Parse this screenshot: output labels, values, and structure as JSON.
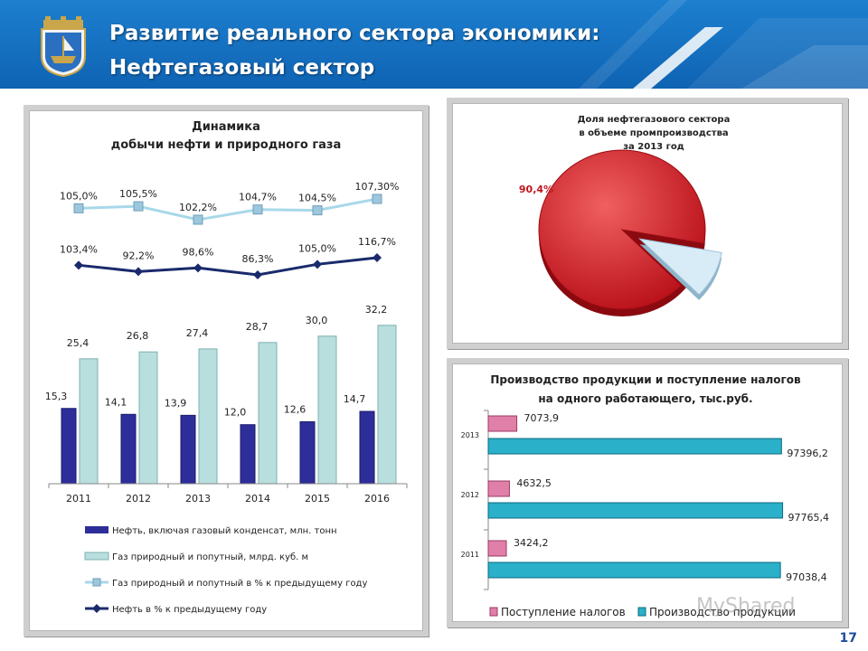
{
  "header": {
    "title_line1": "Развитие реального сектора экономики:",
    "title_line2": "Нефтегазовый сектор",
    "colors": {
      "bg": "#1670c2",
      "text": "#ffffff"
    }
  },
  "page_number": "17",
  "watermark": "MyShared",
  "chart_data": [
    {
      "type": "bar",
      "title": "Динамика\nдобычи нефти и природного газа",
      "categories": [
        "2011",
        "2012",
        "2013",
        "2014",
        "2015",
        "2016"
      ],
      "series": [
        {
          "name": "Нефть, включая газовый конденсат, млн. тонн",
          "type": "bar",
          "color": "#2e2e9a",
          "values": [
            15.3,
            14.1,
            13.9,
            12.0,
            12.6,
            14.7
          ],
          "labels": [
            "15,3",
            "14,1",
            "13,9",
            "12,0",
            "12,6",
            "14,7"
          ]
        },
        {
          "name": "Газ природный и попутный, млрд. куб. м",
          "type": "bar",
          "color": "#b8dede",
          "values": [
            25.4,
            26.8,
            27.4,
            28.7,
            30.0,
            32.2
          ],
          "labels": [
            "25,4",
            "26,8",
            "27,4",
            "28,7",
            "30,0",
            "32,2"
          ]
        },
        {
          "name": "Газ природный и попутный в % к предыдущему году",
          "type": "line",
          "color": "#a8d8ea",
          "values": [
            105.0,
            105.5,
            102.2,
            104.7,
            104.5,
            107.3
          ],
          "labels": [
            "105,0%",
            "105,5%",
            "102,2%",
            "104,7%",
            "104,5%",
            "107,30%"
          ]
        },
        {
          "name": "Нефть в % к предыдущему году",
          "type": "line",
          "color": "#1a2a6c",
          "values": [
            103.4,
            92.2,
            98.6,
            86.3,
            105.0,
            116.7
          ],
          "labels": [
            "103,4%",
            "92,2%",
            "98,6%",
            "86,3%",
            "105,0%",
            "116,7%"
          ]
        }
      ]
    },
    {
      "type": "pie",
      "title": "Доля нефтегазового сектора\nв объеме промпроизводства\nза 2013 год",
      "slices": [
        {
          "label": "90,4%",
          "value": 90.4,
          "color": "#d9242b"
        },
        {
          "label": "",
          "value": 9.6,
          "color": "#d8ecf8"
        }
      ]
    },
    {
      "type": "bar",
      "orientation": "horizontal",
      "title": "Производство продукции и поступление налогов\nна одного работающего, тыс.руб.",
      "categories": [
        "2013",
        "2012",
        "2011"
      ],
      "series": [
        {
          "name": "Поступление налогов",
          "color": "#e080a8",
          "values": [
            7073.9,
            4632.5,
            3424.2
          ],
          "labels": [
            "7073,9",
            "4632,5",
            "3424,2"
          ]
        },
        {
          "name": "Производство продукции",
          "color": "#2ab0c8",
          "values": [
            97396.2,
            97765.4,
            97038.4
          ],
          "labels": [
            "97396,2",
            "97765,4",
            "97038,4"
          ]
        }
      ]
    }
  ]
}
